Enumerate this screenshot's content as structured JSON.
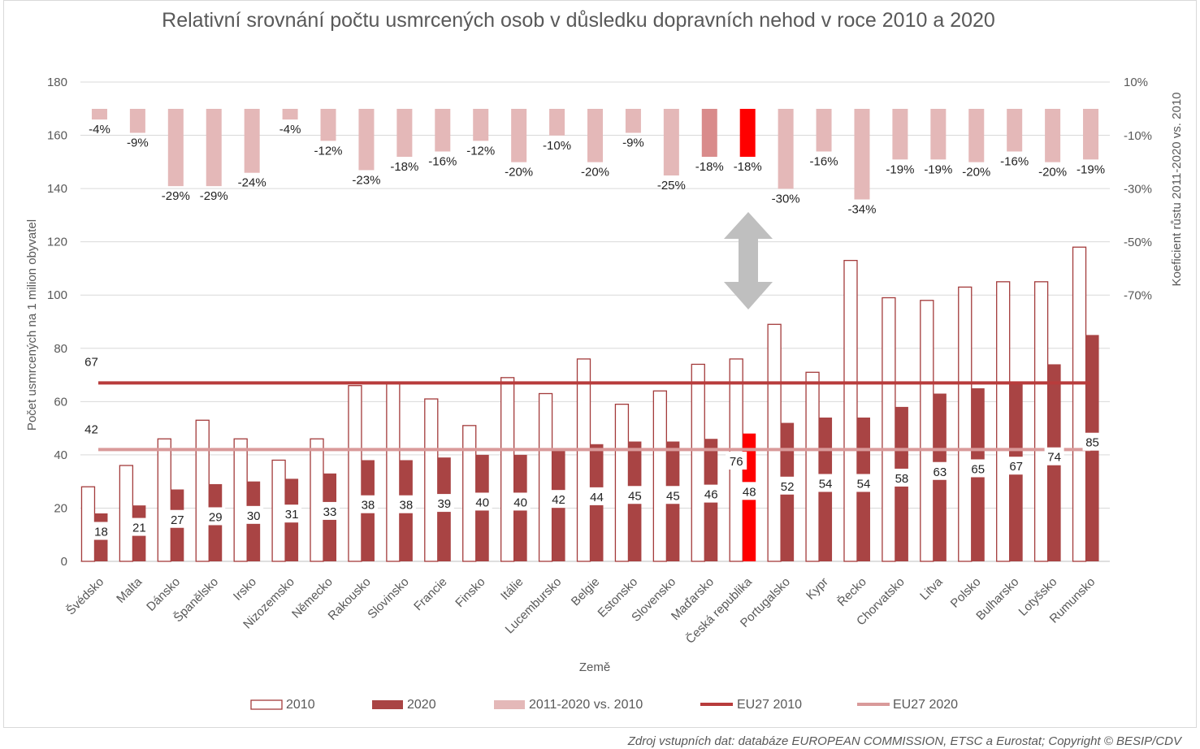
{
  "chart_data": {
    "type": "bar",
    "title": "Relativní srovnání počtu usmrcených osob v důsledku dopravních nehod v roce 2010 a 2020",
    "xlabel": "Země",
    "ylabel": "Počet usmrcených na 1 milion obyvatel",
    "y2label": "Koeficient růstu 2011-2020 vs. 2010",
    "ylim": [
      0,
      180
    ],
    "yticks": [
      0,
      20,
      40,
      60,
      80,
      100,
      120,
      140,
      160,
      180
    ],
    "y2ticks": [
      "10%",
      "-10%",
      "-30%",
      "-50%",
      "-70%"
    ],
    "grid": true,
    "legend_position": "bottom",
    "categories": [
      "Švédsko",
      "Malta",
      "Dánsko",
      "Španělsko",
      "Irsko",
      "Nizozemsko",
      "Německo",
      "Rakousko",
      "Slovinsko",
      "Francie",
      "Finsko",
      "Itálie",
      "Lucembursko",
      "Belgie",
      "Estonsko",
      "Slovensko",
      "Maďarsko",
      "Česká republika",
      "Portugalsko",
      "Kypr",
      "Řecko",
      "Chorvatsko",
      "Litva",
      "Polsko",
      "Bulharsko",
      "Lotyšsko",
      "Rumunsko"
    ],
    "series": [
      {
        "name": "2010",
        "values": [
          28,
          36,
          46,
          53,
          46,
          38,
          46,
          66,
          67,
          61,
          51,
          69,
          63,
          76,
          59,
          64,
          74,
          76,
          89,
          71,
          113,
          99,
          98,
          103,
          105,
          105,
          118
        ]
      },
      {
        "name": "2020",
        "values": [
          18,
          21,
          27,
          29,
          30,
          31,
          33,
          38,
          38,
          39,
          40,
          40,
          42,
          44,
          45,
          45,
          46,
          48,
          52,
          54,
          54,
          58,
          63,
          65,
          67,
          74,
          85
        ]
      },
      {
        "name": "2011-2020 vs. 2010",
        "values": [
          -4,
          -9,
          -29,
          -29,
          -24,
          -4,
          -12,
          -23,
          -18,
          -16,
          -12,
          -20,
          -10,
          -20,
          -9,
          -25,
          -18,
          -18,
          -30,
          -16,
          -34,
          -19,
          -19,
          -20,
          -16,
          -20,
          -19
        ]
      },
      {
        "name": "EU27 2010",
        "value": 67
      },
      {
        "name": "EU27 2020",
        "value": 42
      }
    ],
    "data_labels_2020": [
      "18",
      "21",
      "27",
      "29",
      "30",
      "31",
      "33",
      "38",
      "38",
      "39",
      "40",
      "40",
      "42",
      "44",
      "45",
      "45",
      "46",
      "48",
      "52",
      "54",
      "54",
      "58",
      "63",
      "65",
      "67",
      "74",
      "85"
    ],
    "pct_labels": [
      "-4%",
      "-9%",
      "-29%",
      "-29%",
      "-24%",
      "-4%",
      "-12%",
      "-23%",
      "-18%",
      "-16%",
      "-12%",
      "-20%",
      "-10%",
      "-20%",
      "-9%",
      "-25%",
      "-18%",
      "-18%",
      "-30%",
      "-16%",
      "-34%",
      "-19%",
      "-19%",
      "-20%",
      "-16%",
      "-20%",
      "-19%"
    ],
    "annotations": {
      "cz_2010_label": "76",
      "eu27_2010_label": "67",
      "eu27_2020_label": "42"
    },
    "highlight_category": "Česká republika",
    "colors": {
      "bar2010_stroke": "#a33b3b",
      "bar2020": "#a94444",
      "pct": "#e4b8b8",
      "cz_2020": "#ff0000",
      "cz_pct": "#ff0000",
      "hu_pct": "#d98b8b",
      "eu27_2010": "#b83c3c",
      "eu27_2020": "#d99a9a",
      "grid": "#d9d9d9",
      "arrow": "#bfbfbf"
    },
    "source": "Zdroj vstupních dat: databáze EUROPEAN COMMISSION, ETSC a Eurostat; Copyright © BESIP/CDV"
  }
}
